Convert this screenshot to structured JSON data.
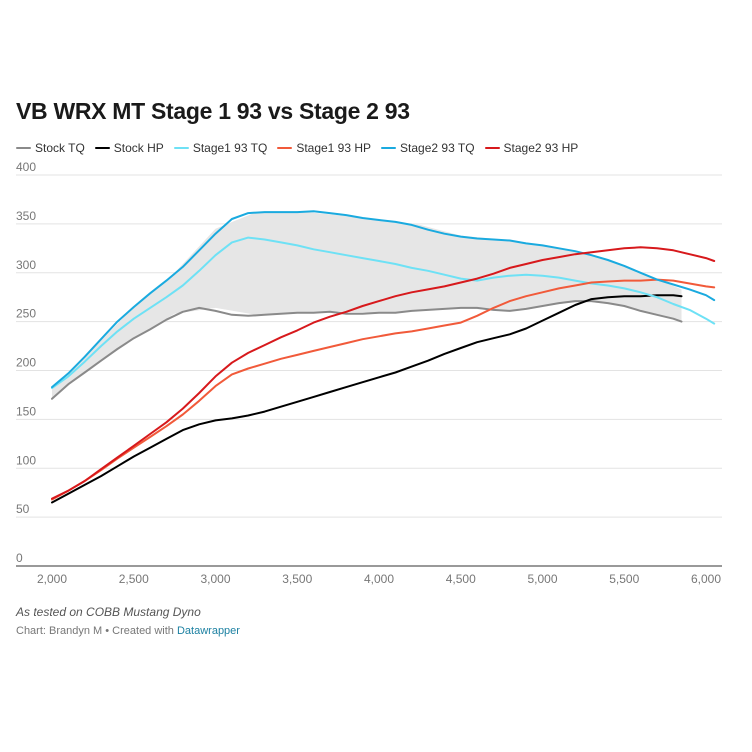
{
  "chart_data": {
    "type": "line",
    "title": "VB WRX MT Stage 1 93 vs Stage 2 93",
    "xlabel": "",
    "ylabel": "",
    "xlim": [
      2000,
      6000
    ],
    "ylim": [
      0,
      400
    ],
    "xticks": [
      2000,
      2500,
      3000,
      3500,
      4000,
      4500,
      5000,
      5500,
      6000
    ],
    "xtick_labels": [
      "2,000",
      "2,500",
      "3,000",
      "3,500",
      "4,000",
      "4,500",
      "5,000",
      "5,500",
      "6,000"
    ],
    "yticks": [
      0,
      50,
      100,
      150,
      200,
      250,
      300,
      350,
      400
    ],
    "ytick_labels": [
      "0",
      "50",
      "100",
      "150",
      "200",
      "250",
      "300",
      "350",
      "400"
    ],
    "grid": "horizontal",
    "legend_position": "top-left",
    "shaded_range": {
      "description": "gray band between Stock TQ and Stage2 TQ",
      "color": "#e6e6e6",
      "x": [
        2000,
        2250,
        2500,
        2750,
        3000,
        3250,
        3500,
        3750,
        4000,
        4250,
        4500,
        4750,
        5000,
        5250,
        5500,
        5750,
        5850
      ],
      "low": [
        171,
        205,
        233,
        258,
        264,
        257,
        259,
        260,
        259,
        261,
        264,
        261,
        266,
        271,
        266,
        256,
        250
      ],
      "high": [
        183,
        222,
        265,
        300,
        345,
        362,
        363,
        359,
        354,
        349,
        338,
        334,
        328,
        320,
        308,
        290,
        283
      ]
    },
    "series": [
      {
        "name": "Stock TQ",
        "color": "#8a8a8a",
        "x": [
          2000,
          2100,
          2200,
          2300,
          2400,
          2500,
          2600,
          2700,
          2800,
          2900,
          3000,
          3100,
          3200,
          3300,
          3400,
          3500,
          3600,
          3700,
          3800,
          3900,
          4000,
          4100,
          4200,
          4300,
          4400,
          4500,
          4600,
          4700,
          4800,
          4900,
          5000,
          5100,
          5200,
          5300,
          5400,
          5500,
          5600,
          5700,
          5800,
          5850
        ],
        "values": [
          171,
          186,
          198,
          210,
          222,
          233,
          242,
          252,
          260,
          264,
          261,
          257,
          256,
          257,
          258,
          259,
          259,
          260,
          258,
          258,
          259,
          259,
          261,
          262,
          263,
          264,
          264,
          262,
          261,
          263,
          266,
          269,
          271,
          271,
          269,
          266,
          261,
          257,
          253,
          250
        ]
      },
      {
        "name": "Stock HP",
        "color": "#000000",
        "x": [
          2000,
          2100,
          2200,
          2300,
          2400,
          2500,
          2600,
          2700,
          2800,
          2900,
          3000,
          3100,
          3200,
          3300,
          3400,
          3500,
          3600,
          3700,
          3800,
          3900,
          4000,
          4100,
          4200,
          4300,
          4400,
          4500,
          4600,
          4700,
          4800,
          4900,
          5000,
          5100,
          5200,
          5300,
          5400,
          5500,
          5600,
          5700,
          5800,
          5850
        ],
        "values": [
          65,
          74,
          83,
          92,
          102,
          112,
          121,
          130,
          139,
          145,
          149,
          151,
          154,
          158,
          163,
          168,
          173,
          178,
          183,
          188,
          193,
          198,
          204,
          210,
          217,
          223,
          229,
          233,
          237,
          243,
          251,
          259,
          267,
          273,
          275,
          276,
          276,
          277,
          277,
          276
        ]
      },
      {
        "name": "Stage1 93 TQ",
        "color": "#6ee1f5",
        "x": [
          2000,
          2100,
          2200,
          2300,
          2400,
          2500,
          2600,
          2700,
          2800,
          2900,
          3000,
          3100,
          3200,
          3300,
          3400,
          3500,
          3600,
          3700,
          3800,
          3900,
          4000,
          4100,
          4200,
          4300,
          4400,
          4500,
          4600,
          4700,
          4800,
          4900,
          5000,
          5100,
          5200,
          5300,
          5400,
          5500,
          5600,
          5700,
          5800,
          5900,
          6000,
          6050
        ],
        "values": [
          182,
          194,
          209,
          225,
          240,
          253,
          264,
          275,
          287,
          302,
          318,
          331,
          336,
          334,
          331,
          328,
          324,
          321,
          318,
          315,
          312,
          309,
          305,
          302,
          298,
          294,
          292,
          295,
          297,
          298,
          297,
          295,
          292,
          289,
          287,
          284,
          280,
          275,
          268,
          262,
          253,
          248
        ]
      },
      {
        "name": "Stage1 93 HP",
        "color": "#f15a3a",
        "x": [
          2000,
          2100,
          2200,
          2300,
          2400,
          2500,
          2600,
          2700,
          2800,
          2900,
          3000,
          3100,
          3200,
          3300,
          3400,
          3500,
          3600,
          3700,
          3800,
          3900,
          4000,
          4100,
          4200,
          4300,
          4400,
          4500,
          4600,
          4700,
          4800,
          4900,
          5000,
          5100,
          5200,
          5300,
          5400,
          5500,
          5600,
          5700,
          5800,
          5900,
          6000,
          6050
        ],
        "values": [
          68,
          77,
          87,
          98,
          110,
          121,
          132,
          143,
          155,
          169,
          184,
          196,
          202,
          207,
          212,
          216,
          220,
          224,
          228,
          232,
          235,
          238,
          240,
          243,
          246,
          249,
          256,
          264,
          271,
          276,
          280,
          284,
          287,
          290,
          291,
          292,
          292,
          293,
          292,
          289,
          286,
          285
        ]
      },
      {
        "name": "Stage2 93 TQ",
        "color": "#1aaadf",
        "x": [
          2000,
          2100,
          2200,
          2300,
          2400,
          2500,
          2600,
          2700,
          2800,
          2900,
          3000,
          3100,
          3200,
          3300,
          3400,
          3500,
          3600,
          3700,
          3800,
          3900,
          4000,
          4100,
          4200,
          4300,
          4400,
          4500,
          4600,
          4700,
          4800,
          4900,
          5000,
          5100,
          5200,
          5300,
          5400,
          5500,
          5600,
          5700,
          5800,
          5900,
          6000,
          6050
        ],
        "values": [
          183,
          197,
          214,
          232,
          250,
          265,
          279,
          292,
          306,
          323,
          340,
          355,
          361,
          362,
          362,
          362,
          363,
          361,
          359,
          356,
          354,
          352,
          349,
          344,
          340,
          337,
          335,
          334,
          333,
          330,
          328,
          325,
          322,
          318,
          313,
          307,
          300,
          293,
          288,
          283,
          277,
          272
        ]
      },
      {
        "name": "Stage2 93 HP",
        "color": "#d7191c",
        "x": [
          2000,
          2100,
          2200,
          2300,
          2400,
          2500,
          2600,
          2700,
          2800,
          2900,
          3000,
          3100,
          3200,
          3300,
          3400,
          3500,
          3600,
          3700,
          3800,
          3900,
          4000,
          4100,
          4200,
          4300,
          4400,
          4500,
          4600,
          4700,
          4800,
          4900,
          5000,
          5100,
          5200,
          5300,
          5400,
          5500,
          5600,
          5700,
          5800,
          5900,
          6000,
          6050
        ],
        "values": [
          69,
          77,
          87,
          99,
          111,
          123,
          135,
          147,
          161,
          177,
          194,
          208,
          218,
          226,
          234,
          241,
          249,
          255,
          260,
          266,
          271,
          276,
          280,
          283,
          286,
          290,
          294,
          299,
          305,
          309,
          313,
          316,
          319,
          321,
          323,
          325,
          326,
          325,
          323,
          319,
          315,
          312
        ]
      }
    ]
  },
  "footer": {
    "note": "As tested on COBB Mustang Dyno",
    "credit_prefix": "Chart: Brandyn M • Created with ",
    "credit_link": "Datawrapper"
  }
}
